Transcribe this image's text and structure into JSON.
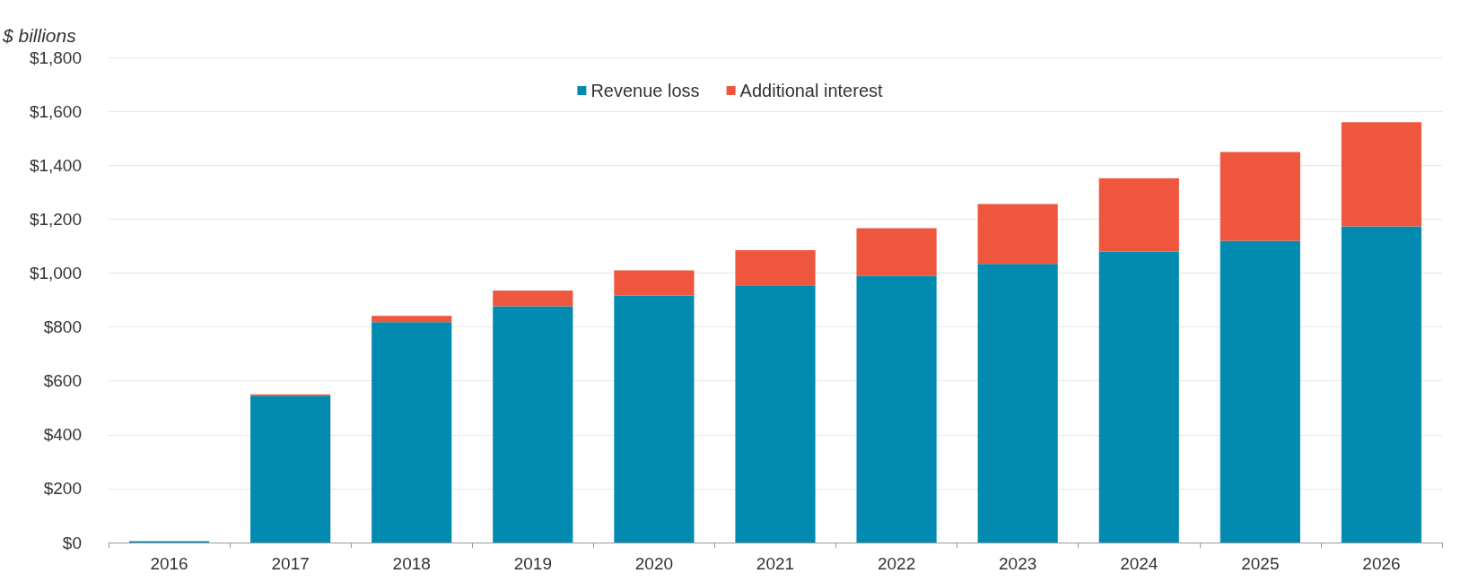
{
  "chart_data": {
    "type": "bar",
    "ylabel": "$ billions",
    "stacked": true,
    "grid": "y",
    "legend": "top",
    "categories": [
      "2016",
      "2017",
      "2018",
      "2019",
      "2020",
      "2021",
      "2022",
      "2023",
      "2024",
      "2025",
      "2026"
    ],
    "series": [
      {
        "name": "Revenue loss",
        "color": "#028ab0",
        "values": [
          5,
          545,
          818,
          877,
          916,
          954,
          989,
          1034,
          1080,
          1120,
          1173
        ]
      },
      {
        "name": "Additional interest",
        "color": "#ee563d",
        "values": [
          0,
          5,
          23,
          58,
          94,
          131,
          177,
          222,
          272,
          329,
          387
        ]
      }
    ],
    "ylim": [
      0,
      1800
    ],
    "yticks": [
      {
        "value": 0,
        "label": "$0"
      },
      {
        "value": 200,
        "label": "$200"
      },
      {
        "value": 400,
        "label": "$400"
      },
      {
        "value": 600,
        "label": "$600"
      },
      {
        "value": 800,
        "label": "$800"
      },
      {
        "value": 1000,
        "label": "$1,000"
      },
      {
        "value": 1200,
        "label": "$1,200"
      },
      {
        "value": 1400,
        "label": "$1,400"
      },
      {
        "value": 1600,
        "label": "$1,600"
      },
      {
        "value": 1800,
        "label": "$1,800"
      }
    ]
  }
}
